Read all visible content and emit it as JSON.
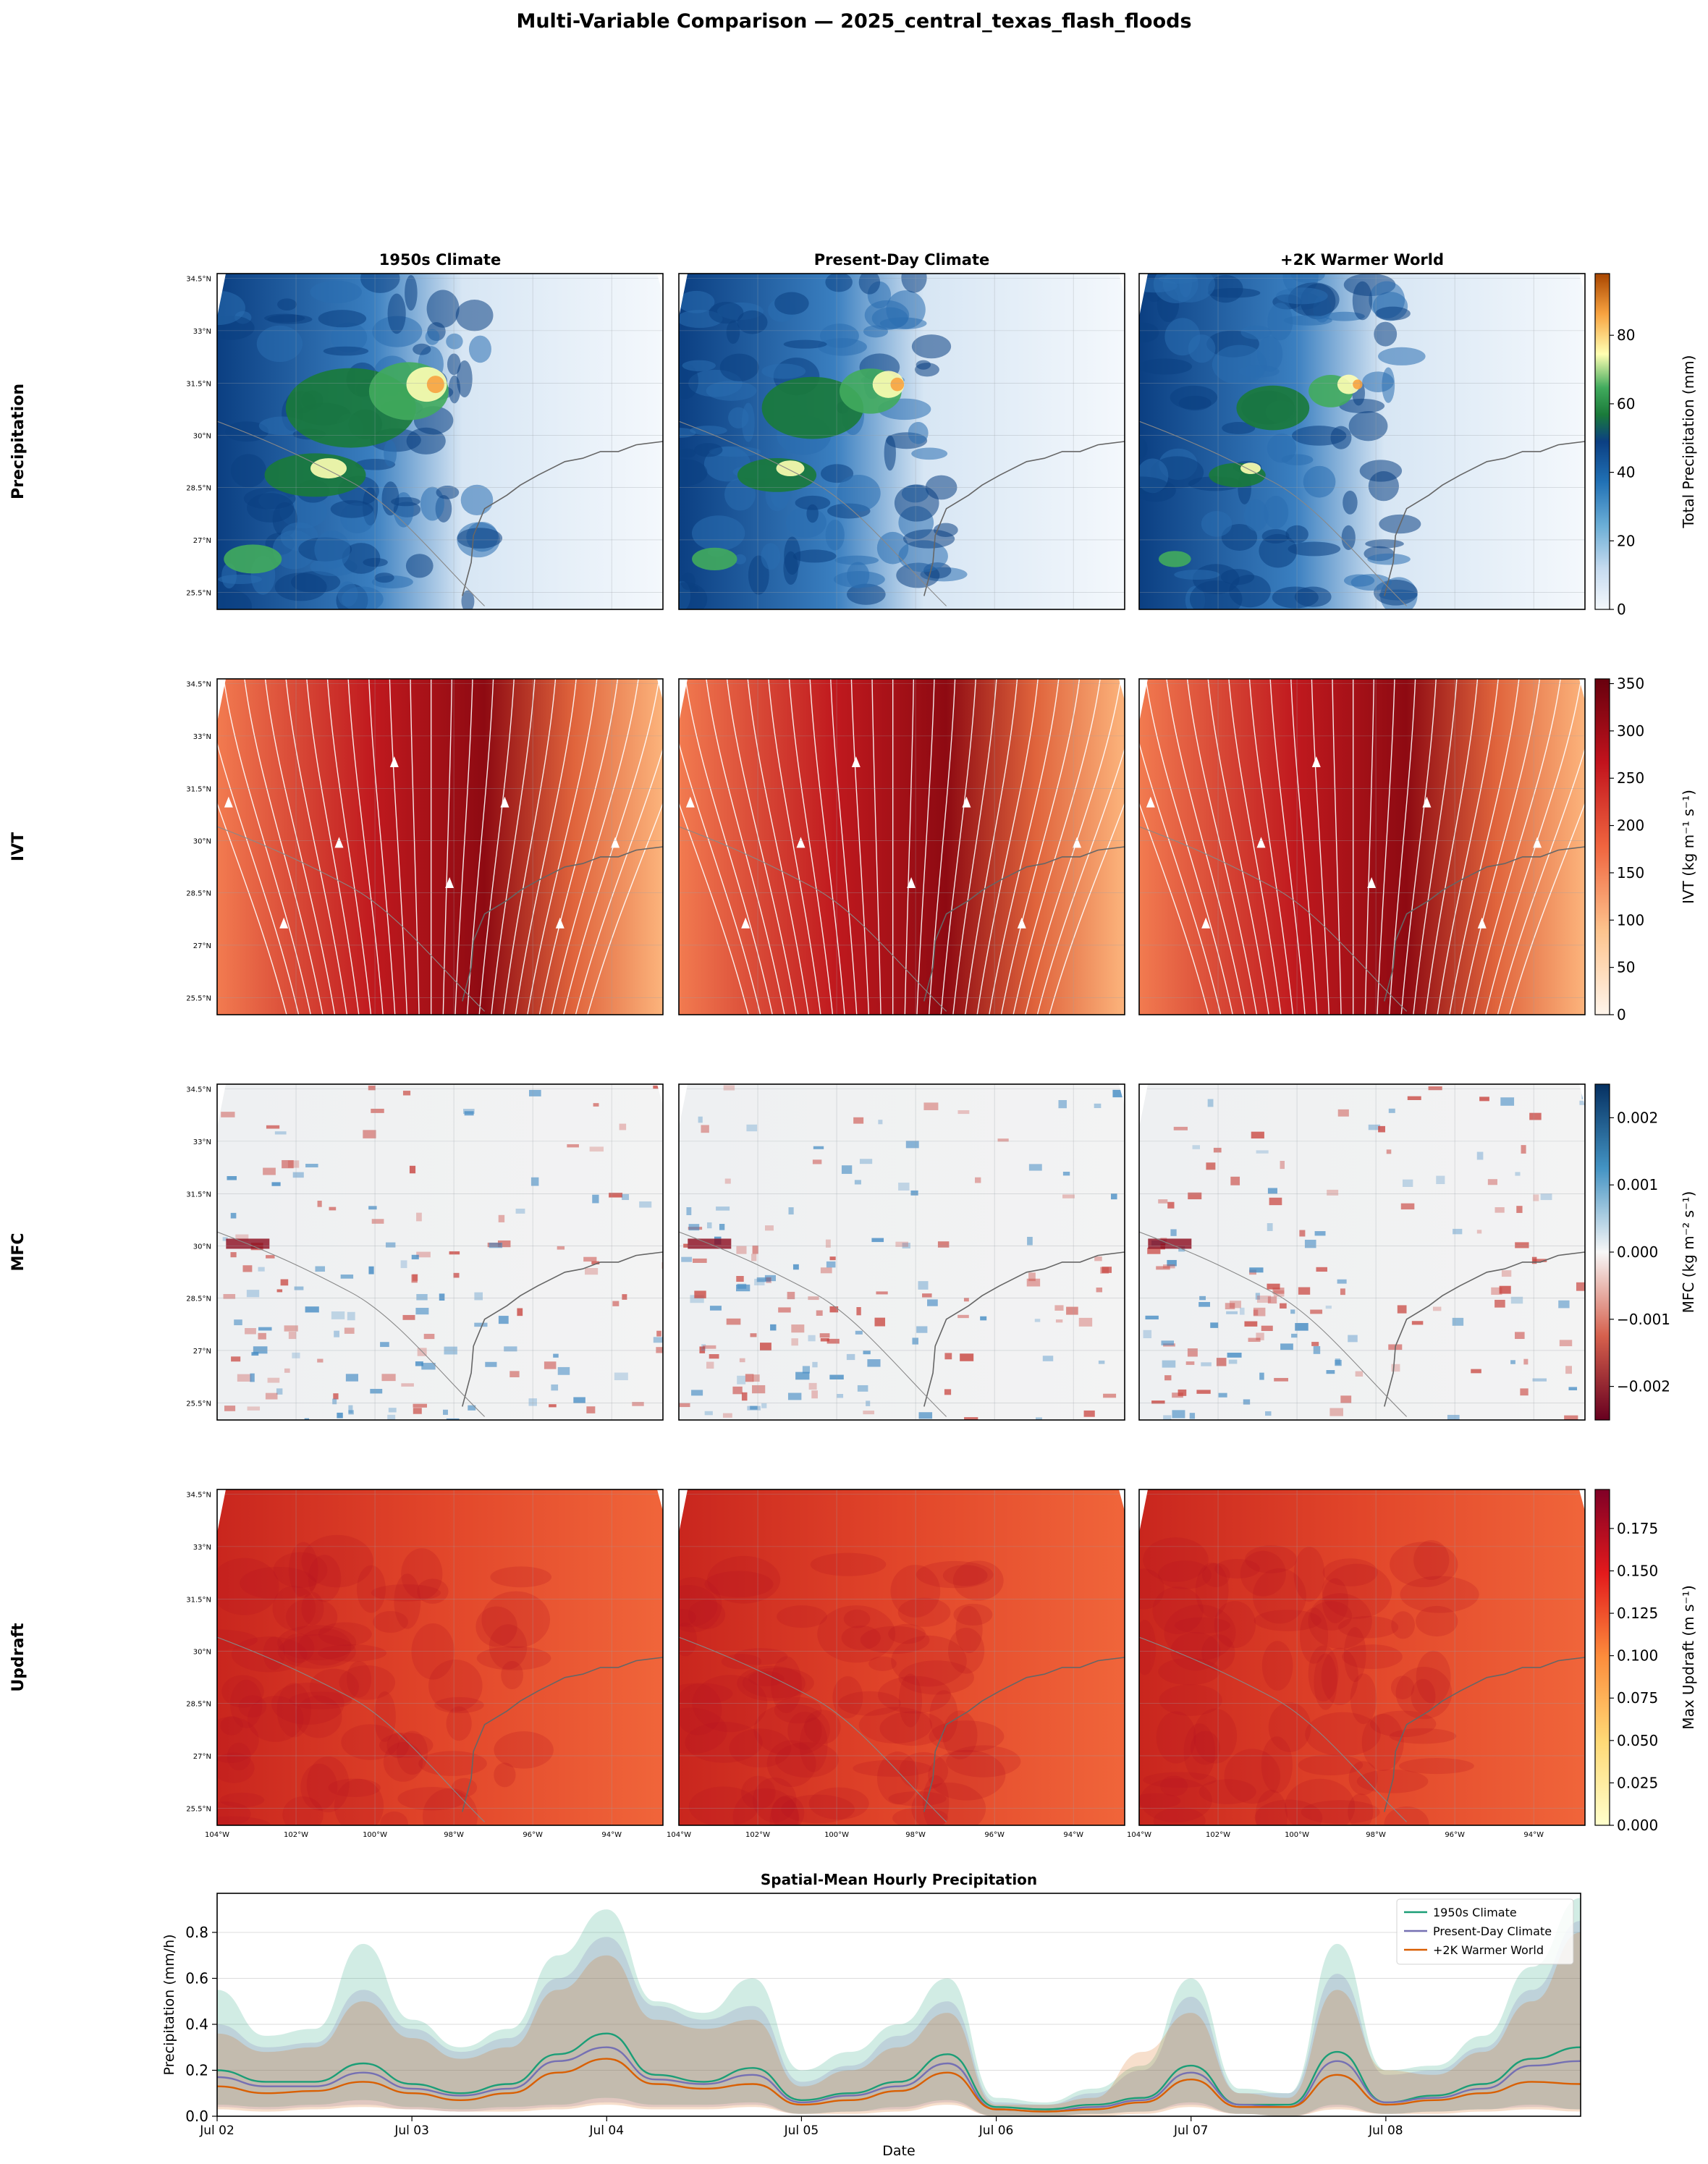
{
  "figure": {
    "title": "Multi-Variable Comparison — 2025_central_texas_flash_floods",
    "columns": [
      "1950s Climate",
      "Present-Day Climate",
      "+2K Warmer World"
    ],
    "rows": [
      {
        "label": "Precipitation",
        "colorbar": {
          "label": "Total Precipitation (mm)",
          "ticks": [
            "0",
            "20",
            "40",
            "60",
            "80"
          ],
          "tick_values": [
            0,
            20,
            40,
            60,
            80
          ],
          "range": [
            0,
            98
          ],
          "colormap": "precip"
        }
      },
      {
        "label": "IVT",
        "colorbar": {
          "label": "IVT (kg m⁻¹ s⁻¹)",
          "ticks": [
            "0",
            "50",
            "100",
            "150",
            "200",
            "250",
            "300",
            "350"
          ],
          "tick_values": [
            0,
            50,
            100,
            150,
            200,
            250,
            300,
            350
          ],
          "range": [
            0,
            355
          ],
          "colormap": "reds"
        }
      },
      {
        "label": "MFC",
        "colorbar": {
          "label": "MFC (kg m⁻² s⁻¹)",
          "ticks": [
            "−0.002",
            "−0.001",
            "0.000",
            "0.001",
            "0.002"
          ],
          "tick_values": [
            -0.002,
            -0.001,
            0,
            0.001,
            0.002
          ],
          "range": [
            -0.0025,
            0.0025
          ],
          "colormap": "rdbu"
        }
      },
      {
        "label": "Updraft",
        "colorbar": {
          "label": "Max Updraft (m s⁻¹)",
          "ticks": [
            "0.000",
            "0.025",
            "0.050",
            "0.075",
            "0.100",
            "0.125",
            "0.150",
            "0.175"
          ],
          "tick_values": [
            0,
            0.025,
            0.05,
            0.075,
            0.1,
            0.125,
            0.15,
            0.175
          ],
          "range": [
            0,
            0.198
          ],
          "colormap": "ylorrd"
        }
      }
    ],
    "lat_ticks": [
      "34.5°N",
      "33°N",
      "31.5°N",
      "30°N",
      "28.5°N",
      "27°N",
      "25.5°N"
    ],
    "lon_ticks": [
      "104°W",
      "102°W",
      "100°W",
      "98°W",
      "96°W",
      "94°W"
    ]
  },
  "chart_data": {
    "type": "line",
    "title": "Spatial-Mean Hourly Precipitation",
    "xlabel": "Date",
    "ylabel": "Precipitation (mm/h)",
    "x_ticks": [
      "Jul 02",
      "Jul 03",
      "Jul 04",
      "Jul 05",
      "Jul 06",
      "Jul 07",
      "Jul 08"
    ],
    "x_range_days": [
      0,
      7
    ],
    "y_ticks": [
      "0.0",
      "0.2",
      "0.4",
      "0.6",
      "0.8"
    ],
    "ylim": [
      0,
      0.97
    ],
    "grid": "y",
    "legend_position": "top-right",
    "x": [
      0.0,
      0.25,
      0.5,
      0.75,
      1.0,
      1.25,
      1.5,
      1.75,
      2.0,
      2.25,
      2.5,
      2.75,
      3.0,
      3.25,
      3.5,
      3.75,
      4.0,
      4.25,
      4.5,
      4.75,
      5.0,
      5.25,
      5.5,
      5.75,
      6.0,
      6.25,
      6.5,
      6.75,
      7.0
    ],
    "series": [
      {
        "name": "1950s Climate",
        "color": "#1b9e77",
        "values": [
          0.2,
          0.15,
          0.15,
          0.23,
          0.14,
          0.1,
          0.14,
          0.27,
          0.36,
          0.18,
          0.15,
          0.21,
          0.07,
          0.1,
          0.15,
          0.27,
          0.04,
          0.03,
          0.05,
          0.08,
          0.22,
          0.05,
          0.05,
          0.28,
          0.06,
          0.09,
          0.14,
          0.25,
          0.3
        ],
        "upper": [
          0.55,
          0.35,
          0.38,
          0.75,
          0.42,
          0.3,
          0.38,
          0.7,
          0.9,
          0.5,
          0.45,
          0.6,
          0.2,
          0.28,
          0.4,
          0.6,
          0.08,
          0.06,
          0.12,
          0.22,
          0.6,
          0.12,
          0.1,
          0.75,
          0.2,
          0.22,
          0.35,
          0.65,
          0.95
        ],
        "lower": [
          0.05,
          0.04,
          0.05,
          0.07,
          0.04,
          0.03,
          0.04,
          0.05,
          0.08,
          0.05,
          0.05,
          0.06,
          0.01,
          0.02,
          0.04,
          0.07,
          0.0,
          0.0,
          0.01,
          0.02,
          0.06,
          0.01,
          0.0,
          0.05,
          0.01,
          0.02,
          0.03,
          0.05,
          0.03
        ]
      },
      {
        "name": "Present-Day Climate",
        "color": "#7570b3",
        "values": [
          0.17,
          0.13,
          0.13,
          0.19,
          0.12,
          0.09,
          0.12,
          0.24,
          0.3,
          0.16,
          0.14,
          0.18,
          0.06,
          0.09,
          0.13,
          0.23,
          0.03,
          0.02,
          0.04,
          0.07,
          0.19,
          0.05,
          0.04,
          0.24,
          0.06,
          0.08,
          0.12,
          0.22,
          0.24
        ],
        "upper": [
          0.4,
          0.3,
          0.32,
          0.55,
          0.38,
          0.28,
          0.34,
          0.6,
          0.78,
          0.48,
          0.42,
          0.48,
          0.15,
          0.22,
          0.35,
          0.5,
          0.06,
          0.05,
          0.1,
          0.2,
          0.52,
          0.1,
          0.1,
          0.62,
          0.18,
          0.2,
          0.3,
          0.55,
          0.85
        ],
        "lower": [
          0.04,
          0.03,
          0.04,
          0.05,
          0.03,
          0.02,
          0.03,
          0.04,
          0.06,
          0.04,
          0.04,
          0.05,
          0.01,
          0.02,
          0.03,
          0.06,
          0.0,
          0.0,
          0.01,
          0.02,
          0.05,
          0.01,
          0.0,
          0.04,
          0.01,
          0.02,
          0.03,
          0.04,
          0.03
        ]
      },
      {
        "name": "+2K Warmer World",
        "color": "#d95f02",
        "values": [
          0.13,
          0.1,
          0.11,
          0.15,
          0.1,
          0.07,
          0.1,
          0.19,
          0.25,
          0.14,
          0.12,
          0.14,
          0.05,
          0.07,
          0.11,
          0.19,
          0.03,
          0.02,
          0.03,
          0.06,
          0.16,
          0.04,
          0.04,
          0.18,
          0.05,
          0.07,
          0.1,
          0.15,
          0.14
        ],
        "upper": [
          0.36,
          0.28,
          0.3,
          0.5,
          0.34,
          0.25,
          0.3,
          0.55,
          0.7,
          0.42,
          0.38,
          0.42,
          0.13,
          0.2,
          0.3,
          0.45,
          0.05,
          0.05,
          0.08,
          0.28,
          0.45,
          0.1,
          0.08,
          0.55,
          0.2,
          0.18,
          0.28,
          0.5,
          0.8
        ],
        "lower": [
          0.03,
          0.02,
          0.03,
          0.04,
          0.03,
          0.02,
          0.02,
          0.03,
          0.05,
          0.03,
          0.03,
          0.04,
          0.01,
          0.01,
          0.02,
          0.05,
          0.0,
          0.0,
          0.0,
          0.01,
          0.04,
          0.01,
          0.0,
          0.03,
          0.01,
          0.01,
          0.02,
          0.03,
          0.02
        ]
      }
    ]
  }
}
